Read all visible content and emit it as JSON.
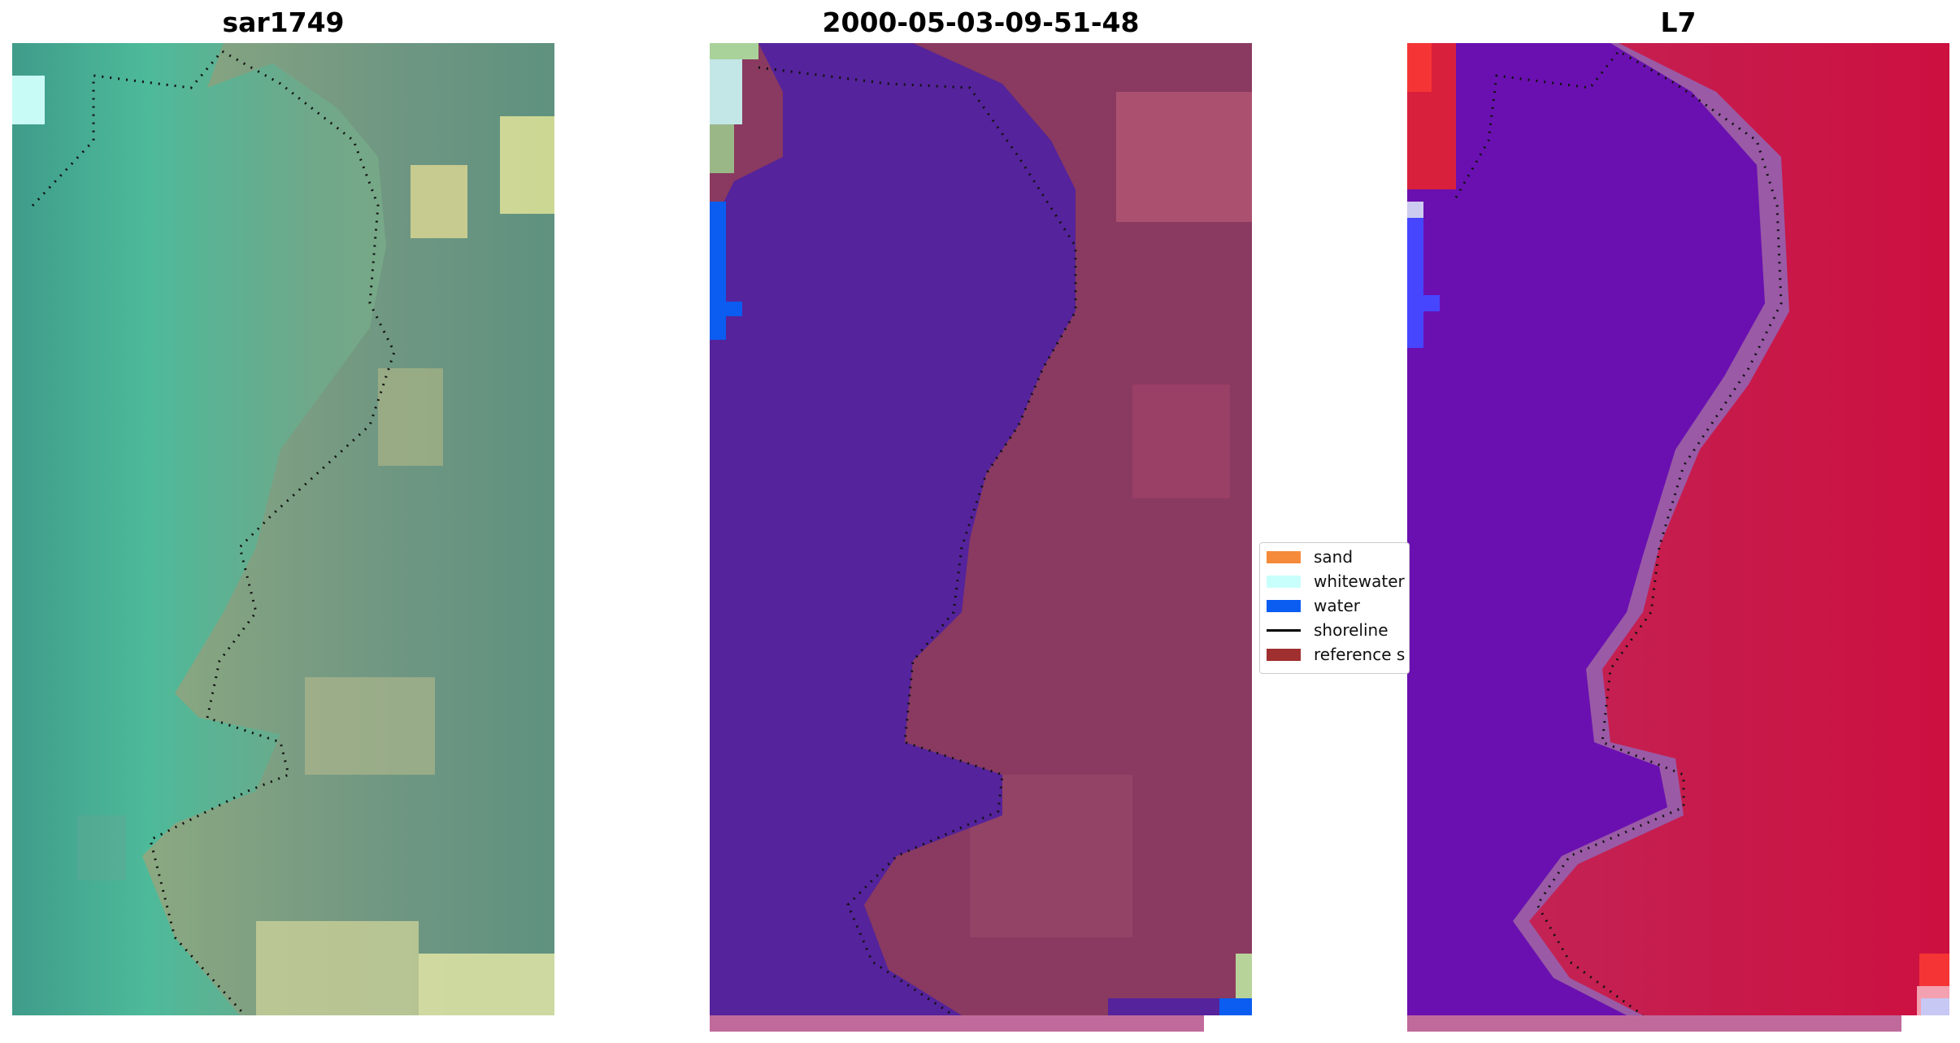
{
  "panels": [
    {
      "title": "sar1749",
      "image": "satellite-rgb"
    },
    {
      "title": "2000-05-03-09-51-48",
      "image": "classified-overlay"
    },
    {
      "title": "L7",
      "image": "mndwi-index"
    }
  ],
  "legend": {
    "items": [
      {
        "label": "sand",
        "color": "#f58a3a",
        "kind": "patch"
      },
      {
        "label": "whitewater",
        "color": "#c9fffb",
        "kind": "patch"
      },
      {
        "label": "water",
        "color": "#0a5df0",
        "kind": "patch"
      },
      {
        "label": "shoreline",
        "color": "#000000",
        "kind": "line"
      },
      {
        "label": "reference s",
        "color": "#a02f2f",
        "kind": "patch"
      }
    ]
  },
  "colors": {
    "water_class": "#55239b",
    "land_overlay": "#8a3a60",
    "index_water": "#6a10b0",
    "index_land": "#cc1040",
    "strip": "#c06a9c",
    "shoreline_dots": "#111111"
  }
}
